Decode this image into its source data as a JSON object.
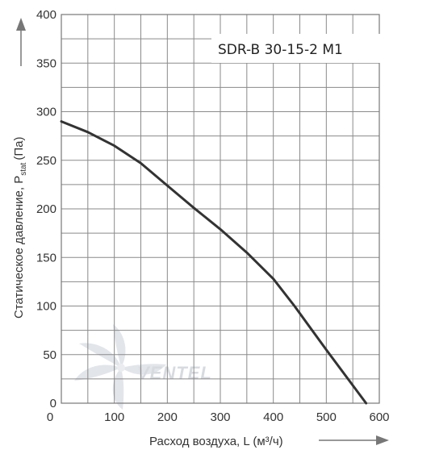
{
  "chart_data": {
    "type": "line",
    "model_label": "SDR-B 30-15-2 M1",
    "xlabel": "Расход воздуха, L (м³/ч)",
    "ylabel": "Статическое давление, P",
    "ylabel_sub": "stat",
    "ylabel_unit": "(Па)",
    "xlim": [
      0,
      600
    ],
    "ylim": [
      0,
      400
    ],
    "x_ticks": [
      "0",
      "100",
      "200",
      "300",
      "400",
      "500",
      "600"
    ],
    "y_ticks": [
      "0",
      "50",
      "100",
      "150",
      "200",
      "250",
      "300",
      "350",
      "400"
    ],
    "grid": true,
    "series": [
      {
        "x": [
          0,
          50,
          100,
          150,
          200,
          250,
          300,
          350,
          400,
          440,
          500,
          575
        ],
        "y": [
          290,
          279,
          265,
          247,
          224,
          201,
          179,
          155,
          128,
          100,
          55,
          0
        ]
      }
    ],
    "colors": {
      "curve": "#333333",
      "grid": "#8a8a8a",
      "frame": "#777777",
      "watermark": "#d7dbe0"
    }
  },
  "watermark": {
    "text": "VENTEL"
  }
}
